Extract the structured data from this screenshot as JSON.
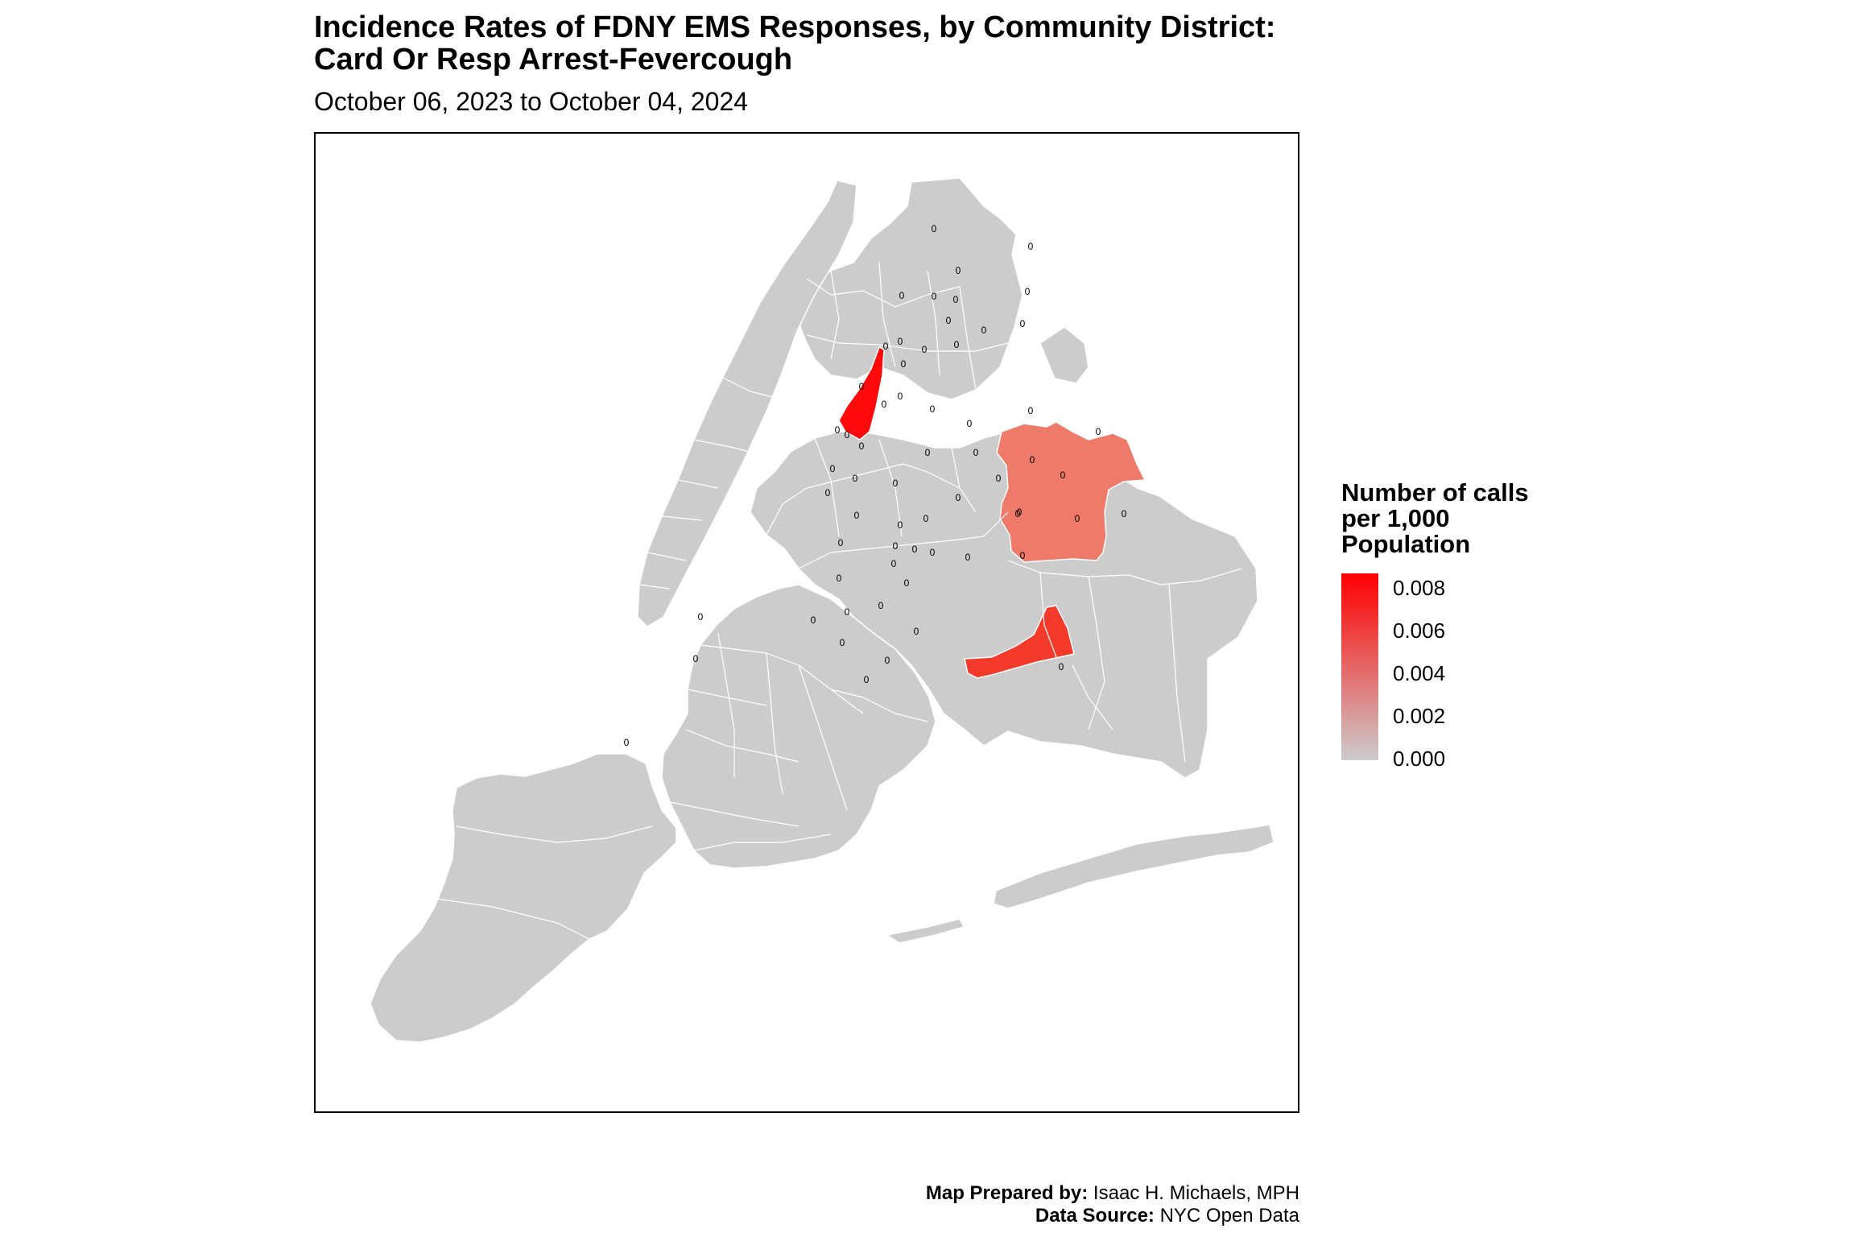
{
  "title_line1": "Incidence Rates of FDNY EMS Responses, by Community District:",
  "title_line2": "Card Or Resp Arrest-Fevercough",
  "subtitle": "October 06, 2023 to October 04, 2024",
  "legend": {
    "title_line1": "Number of calls",
    "title_line2": "per 1,000",
    "title_line3": "Population",
    "ticks": [
      "0.008",
      "0.006",
      "0.004",
      "0.002",
      "0.000"
    ],
    "color_low": "#cccccc",
    "color_high": "#ff0000"
  },
  "colors": {
    "district_default": "#cccccc",
    "district_border": "#ffffff",
    "district_manhattan_highlight": "#ff0a0a",
    "district_brooklyn_highlight": "#f43a2a",
    "district_queens_highlight": "#ee7a6a"
  },
  "district_label": "0",
  "credits": {
    "prepared_label": "Map Prepared by:",
    "prepared_value": "Isaac H. Michaels, MPH",
    "source_label": "Data Source:",
    "source_value": "NYC Open Data"
  }
}
